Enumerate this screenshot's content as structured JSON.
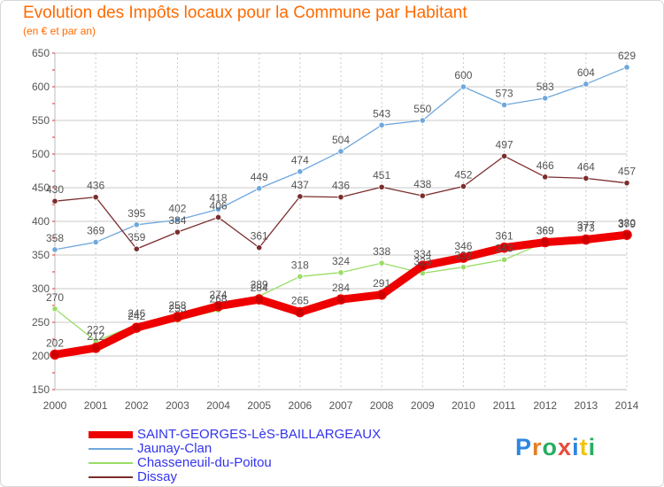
{
  "title": "Evolution des Impôts locaux pour la Commune par Habitant",
  "subtitle": "(en € et par an)",
  "logo": {
    "letters": [
      "P",
      "r",
      "o",
      "x",
      "i",
      "t",
      "i"
    ],
    "colors": [
      "#2e86de",
      "#e67e22",
      "#27ae60",
      "#e74c3c",
      "#2e86de",
      "#f1c40f",
      "#27ae60"
    ]
  },
  "chart_data": {
    "type": "line",
    "title": "Evolution des Impôts locaux pour la Commune par Habitant",
    "subtitle": "(en € et par an)",
    "x": [
      2000,
      2001,
      2002,
      2003,
      2004,
      2005,
      2006,
      2007,
      2008,
      2009,
      2010,
      2011,
      2012,
      2013,
      2014
    ],
    "ylim": [
      150,
      650
    ],
    "yticks": [
      150,
      200,
      250,
      300,
      350,
      400,
      450,
      500,
      550,
      600,
      650
    ],
    "grid": true,
    "legend_position": "bottom-left",
    "series": [
      {
        "name": "SAINT-GEORGES-LèS-BAILLARGEAUX",
        "color": "#ee0000",
        "values": [
          202,
          212,
          242,
          258,
          274,
          284,
          265,
          284,
          291,
          334,
          346,
          361,
          369,
          373,
          380
        ]
      },
      {
        "name": "Jaunay-Clan",
        "color": "#6fa8dc",
        "values": [
          358,
          369,
          395,
          402,
          418,
          449,
          474,
          504,
          543,
          550,
          600,
          573,
          583,
          604,
          629
        ]
      },
      {
        "name": "Chasseneuil-du-Poitou",
        "color": "#99dd66",
        "values": [
          270,
          222,
          246,
          253,
          268,
          289,
          318,
          324,
          338,
          323,
          332,
          343,
          369,
          377,
          379
        ]
      },
      {
        "name": "Dissay",
        "color": "#7b2d2d",
        "values": [
          430,
          436,
          359,
          384,
          406,
          361,
          437,
          436,
          451,
          438,
          452,
          497,
          466,
          464,
          457
        ]
      }
    ]
  }
}
